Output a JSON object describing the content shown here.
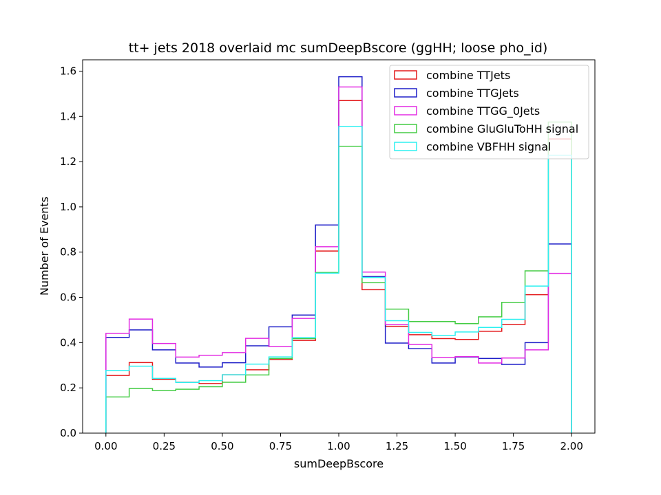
{
  "chart_data": {
    "type": "step-histogram",
    "title": "tt+ jets 2018 overlaid mc sumDeepBscore (ggHH; loose pho_id)",
    "xlabel": "sumDeepBscore",
    "ylabel": "Number of Events",
    "xlim": [
      -0.1,
      2.1
    ],
    "ylim": [
      0,
      1.65
    ],
    "xticks": [
      0.0,
      0.25,
      0.5,
      0.75,
      1.0,
      1.25,
      1.5,
      1.75,
      2.0
    ],
    "xtick_labels": [
      "0.00",
      "0.25",
      "0.50",
      "0.75",
      "1.00",
      "1.25",
      "1.50",
      "1.75",
      "2.00"
    ],
    "yticks": [
      0.0,
      0.2,
      0.4,
      0.6,
      0.8,
      1.0,
      1.2,
      1.4,
      1.6
    ],
    "ytick_labels": [
      "0.0",
      "0.2",
      "0.4",
      "0.6",
      "0.8",
      "1.0",
      "1.2",
      "1.4",
      "1.6"
    ],
    "grid": false,
    "legend_position": "top-right",
    "bin_edges": [
      0.0,
      0.1,
      0.2,
      0.3,
      0.4,
      0.5,
      0.6,
      0.7,
      0.8,
      0.9,
      1.0,
      1.1,
      1.2,
      1.3,
      1.4,
      1.5,
      1.6,
      1.7,
      1.8,
      1.9,
      2.0
    ],
    "series": [
      {
        "name": "combine TTJets",
        "color": "#e41a1c",
        "values": [
          0.255,
          0.312,
          0.237,
          0.225,
          0.219,
          0.258,
          0.28,
          0.325,
          0.41,
          0.805,
          1.47,
          0.634,
          0.472,
          0.435,
          0.418,
          0.414,
          0.45,
          0.48,
          0.612,
          1.3
        ]
      },
      {
        "name": "combine TTGJets",
        "color": "#1f1fc8",
        "values": [
          0.423,
          0.456,
          0.368,
          0.31,
          0.292,
          0.311,
          0.386,
          0.47,
          0.522,
          0.92,
          1.575,
          0.692,
          0.398,
          0.373,
          0.31,
          0.336,
          0.33,
          0.304,
          0.4,
          0.836
        ]
      },
      {
        "name": "combine TTGG_0Jets",
        "color": "#e32ce3",
        "values": [
          0.441,
          0.504,
          0.396,
          0.336,
          0.344,
          0.356,
          0.419,
          0.382,
          0.507,
          0.824,
          1.53,
          0.712,
          0.48,
          0.392,
          0.334,
          0.338,
          0.31,
          0.332,
          0.368,
          0.706
        ]
      },
      {
        "name": "combine GluGluToHH signal",
        "color": "#44cc44",
        "values": [
          0.16,
          0.197,
          0.188,
          0.194,
          0.205,
          0.225,
          0.257,
          0.33,
          0.418,
          0.71,
          1.268,
          0.665,
          0.548,
          0.493,
          0.493,
          0.484,
          0.514,
          0.578,
          0.717,
          1.375
        ]
      },
      {
        "name": "combine VBFHH signal",
        "color": "#2ef0f0",
        "values": [
          0.277,
          0.296,
          0.242,
          0.224,
          0.232,
          0.258,
          0.305,
          0.337,
          0.422,
          0.707,
          1.355,
          0.688,
          0.497,
          0.445,
          0.432,
          0.447,
          0.467,
          0.503,
          0.65,
          1.228
        ]
      }
    ]
  }
}
